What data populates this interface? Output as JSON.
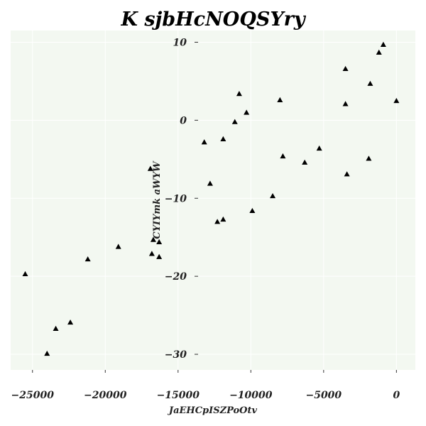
{
  "chart_data": {
    "type": "scatter",
    "title": "K sjbHcNOQSYry",
    "xlabel": "JaEHCpISZPoOtv",
    "ylabel": "CYIYmk aWYW",
    "xlim": [
      -26500,
      1300
    ],
    "ylim": [
      -32,
      11.5
    ],
    "x_ticks": [
      {
        "value": -25000,
        "label": "−25000"
      },
      {
        "value": -20000,
        "label": "−20000"
      },
      {
        "value": -15000,
        "label": "−15000"
      },
      {
        "value": -10000,
        "label": "−10000"
      },
      {
        "value": -5000,
        "label": "−5000"
      },
      {
        "value": 0,
        "label": "0"
      }
    ],
    "y_ticks": [
      {
        "value": 10,
        "label": "10"
      },
      {
        "value": 0,
        "label": "0"
      },
      {
        "value": -10,
        "label": "−10"
      },
      {
        "value": -20,
        "label": "−20"
      },
      {
        "value": -30,
        "label": "−30"
      }
    ],
    "grid": true,
    "background_color": "#f3f8f1",
    "marker": "triangle",
    "marker_color": "#000000",
    "points": [
      {
        "x": -25500,
        "y": -19.7
      },
      {
        "x": -24000,
        "y": -29.9
      },
      {
        "x": -23400,
        "y": -26.7
      },
      {
        "x": -22400,
        "y": -25.9
      },
      {
        "x": -21200,
        "y": -17.8
      },
      {
        "x": -19100,
        "y": -16.2
      },
      {
        "x": -16900,
        "y": -6.2
      },
      {
        "x": -16800,
        "y": -17.1
      },
      {
        "x": -16700,
        "y": -15.3
      },
      {
        "x": -16300,
        "y": -15.6
      },
      {
        "x": -16300,
        "y": -17.5
      },
      {
        "x": -13200,
        "y": -2.8
      },
      {
        "x": -12800,
        "y": -8.1
      },
      {
        "x": -12300,
        "y": -13.0
      },
      {
        "x": -11900,
        "y": -2.4
      },
      {
        "x": -11900,
        "y": -12.7
      },
      {
        "x": -11100,
        "y": -0.2
      },
      {
        "x": -10800,
        "y": 3.4
      },
      {
        "x": -10300,
        "y": 1.0
      },
      {
        "x": -9900,
        "y": -11.6
      },
      {
        "x": -8500,
        "y": -9.7
      },
      {
        "x": -8000,
        "y": 2.6
      },
      {
        "x": -7800,
        "y": -4.6
      },
      {
        "x": -6300,
        "y": -5.4
      },
      {
        "x": -5300,
        "y": -3.6
      },
      {
        "x": -3500,
        "y": 6.6
      },
      {
        "x": -3500,
        "y": 2.1
      },
      {
        "x": -3400,
        "y": -6.9
      },
      {
        "x": -1900,
        "y": -4.9
      },
      {
        "x": -1800,
        "y": 4.7
      },
      {
        "x": -1200,
        "y": 8.7
      },
      {
        "x": -900,
        "y": 9.7
      },
      {
        "x": 0,
        "y": 2.5
      }
    ]
  }
}
